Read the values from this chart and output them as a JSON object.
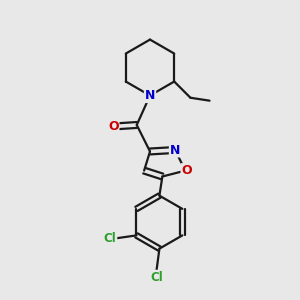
{
  "bg_color": "#e8e8e8",
  "bond_color": "#1a1a1a",
  "bond_width": 1.6,
  "atom_colors": {
    "N": "#0000cc",
    "O": "#cc0000",
    "Cl": "#2ca02c",
    "C": "#1a1a1a"
  },
  "font_size_atom": 9,
  "font_size_cl": 8.5
}
